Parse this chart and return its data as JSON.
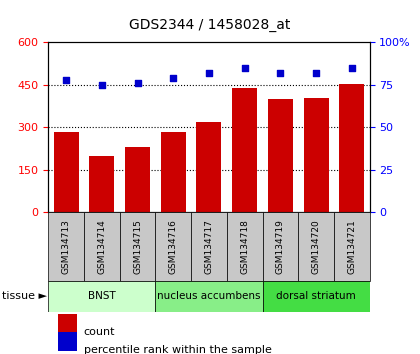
{
  "title": "GDS2344 / 1458028_at",
  "categories": [
    "GSM134713",
    "GSM134714",
    "GSM134715",
    "GSM134716",
    "GSM134717",
    "GSM134718",
    "GSM134719",
    "GSM134720",
    "GSM134721"
  ],
  "counts": [
    285,
    200,
    230,
    285,
    320,
    440,
    400,
    405,
    455
  ],
  "percentiles": [
    78,
    75,
    76,
    79,
    82,
    85,
    82,
    82,
    85
  ],
  "ylim_left": [
    0,
    600
  ],
  "ylim_right": [
    0,
    100
  ],
  "yticks_left": [
    0,
    150,
    300,
    450,
    600
  ],
  "yticks_right": [
    0,
    25,
    50,
    75,
    100
  ],
  "bar_color": "#cc0000",
  "dot_color": "#0000cc",
  "tissue_groups": [
    {
      "label": "BNST",
      "start": 0,
      "end": 3,
      "color": "#ccffcc"
    },
    {
      "label": "nucleus accumbens",
      "start": 3,
      "end": 6,
      "color": "#88ee88"
    },
    {
      "label": "dorsal striatum",
      "start": 6,
      "end": 9,
      "color": "#44dd44"
    }
  ],
  "tissue_label": "tissue",
  "legend_count_label": "count",
  "legend_pct_label": "percentile rank within the sample",
  "xticklabel_bg": "#c8c8c8"
}
